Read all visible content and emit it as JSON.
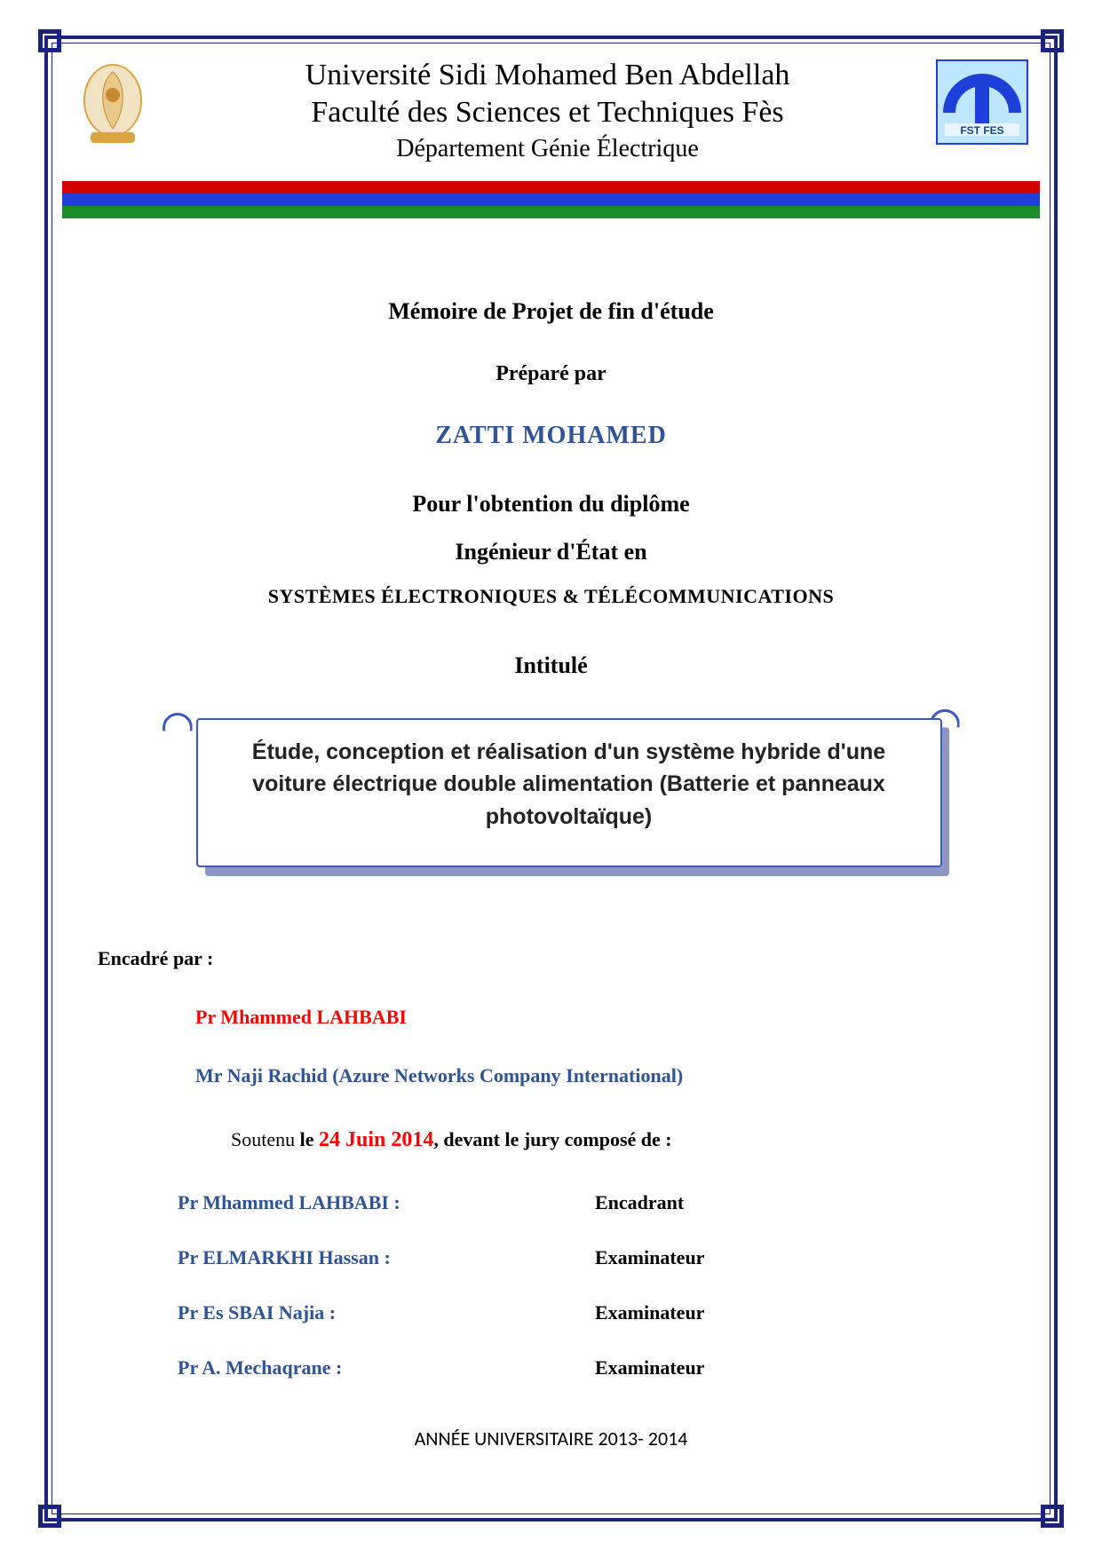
{
  "colors": {
    "border_navy": "#1a237e",
    "stripe_red": "#d40000",
    "stripe_blue": "#1e3fd8",
    "stripe_green": "#1f8a2a",
    "author_blue": "#2f5496",
    "sup_red": "#ff0000",
    "scroll_border": "#3b57c9",
    "scroll_shadow": "#8c97c4",
    "fst_logo_bg": "#5fb3e6",
    "fst_logo_arc": "#1e3fd8",
    "usmba_gold": "#d9a441"
  },
  "header": {
    "line1": "Université Sidi Mohamed Ben Abdellah",
    "line2": "Faculté des Sciences et Techniques Fès",
    "line3": "Département Génie Électrique",
    "logo_left_alt": "usmba-logo",
    "logo_right_alt": "fst-fes-logo",
    "logo_right_caption": "FST FES"
  },
  "body": {
    "memoire": "Mémoire de Projet de fin d'étude",
    "prepare_par": "Préparé par",
    "author": "ZATTI MOHAMED",
    "pour": "Pour l'obtention du diplôme",
    "ingenieur": "Ingénieur d'État en",
    "specialite": "SYSTÈMES ÉLECTRONIQUES & TÉLÉCOMMUNICATIONS",
    "intitule_label": "Intitulé",
    "title_box": "Étude, conception et réalisation d'un système hybride d'une voiture électrique double alimentation (Batterie et panneaux photovoltaïque)"
  },
  "supervision": {
    "label": "Encadré par :",
    "items": [
      {
        "text": "Pr  Mhammed LAHBABI",
        "color": "red"
      },
      {
        "text": "Mr Naji Rachid (Azure Networks Company International)",
        "color": "blue"
      }
    ]
  },
  "defense": {
    "prefix": "Soutenu ",
    "le": "le ",
    "date": "24 Juin 2014",
    "suffix": ", devant le jury composé de :"
  },
  "jury": [
    {
      "name": "Pr  Mhammed LAHBABI :",
      "role": "Encadrant"
    },
    {
      "name": "Pr  ELMARKHI Hassan :",
      "role": "Examinateur"
    },
    {
      "name": "Pr  Es SBAI Najia :",
      "role": "Examinateur"
    },
    {
      "name": "Pr A. Mechaqrane :",
      "role": "Examinateur"
    }
  ],
  "footer": {
    "year": "ANNÉE UNIVERSITAIRE 2013- 2014"
  }
}
